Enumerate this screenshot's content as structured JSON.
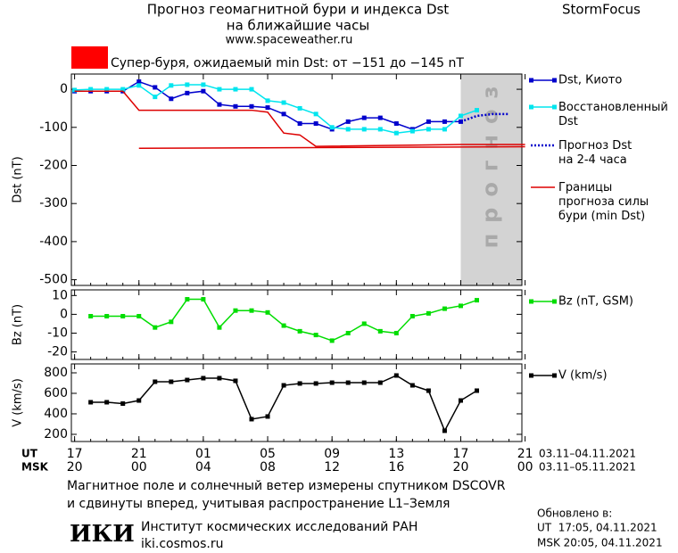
{
  "header": {
    "title": "Прогноз геомагнитной бури и индекса Dst",
    "subtitle": "на ближайшие часы",
    "site": "www.spaceweather.ru",
    "brand": "StormFocus",
    "storm_note": "Супер-буря, ожидаемый min Dst: от −151 до −145 nT",
    "storm_color": "#ff0000"
  },
  "chart_data": [
    {
      "type": "line",
      "ylabel": "Dst (nT)",
      "ylim": [
        -515,
        40
      ],
      "yticks": [
        0,
        -100,
        -200,
        -300,
        -400,
        -500
      ],
      "forecast_band": {
        "x": [
          24,
          28
        ],
        "label": "прогноз",
        "color": "#d3d3d3"
      },
      "series": [
        {
          "name": "Dst, Киото",
          "color": "#0000cc",
          "marker": "square",
          "x": [
            0,
            1,
            2,
            3,
            4,
            5,
            6,
            7,
            8,
            9,
            10,
            11,
            12,
            13,
            14,
            15,
            16,
            17,
            18,
            19,
            20,
            21,
            22,
            23,
            24
          ],
          "values": [
            -5,
            -5,
            -5,
            -5,
            20,
            5,
            -25,
            -10,
            -5,
            -40,
            -45,
            -45,
            -48,
            -65,
            -90,
            -90,
            -105,
            -85,
            -75,
            -75,
            -90,
            -105,
            -85,
            -85,
            -85
          ]
        },
        {
          "name": "Восстановленный\nDst",
          "color": "#00e5ee",
          "marker": "square",
          "x": [
            0,
            1,
            2,
            3,
            4,
            5,
            6,
            7,
            8,
            9,
            10,
            11,
            12,
            13,
            14,
            15,
            16,
            17,
            18,
            19,
            20,
            21,
            22,
            23,
            24,
            25
          ],
          "values": [
            -2,
            0,
            0,
            0,
            10,
            -20,
            10,
            12,
            12,
            0,
            0,
            0,
            -30,
            -35,
            -50,
            -65,
            -100,
            -105,
            -105,
            -105,
            -115,
            -110,
            -105,
            -105,
            -70,
            -55
          ]
        },
        {
          "name": "Прогноз Dst\nна 2-4 часа",
          "color": "#0000cc",
          "dash": "dotted",
          "x": [
            24,
            25,
            26,
            27
          ],
          "values": [
            -85,
            -70,
            -65,
            -65
          ]
        },
        {
          "name": "Границы\nпрогноза силы\nбури (min Dst)",
          "color": "#dd0000",
          "x": [
            0,
            3,
            4,
            11,
            12,
            13,
            14,
            15,
            24,
            28
          ],
          "values": [
            -5,
            -5,
            -55,
            -55,
            -60,
            -115,
            -120,
            -150,
            -145,
            -145
          ]
        },
        {
          "color": "#dd0000",
          "x": [
            4,
            28
          ],
          "values": [
            -155,
            -151
          ]
        }
      ]
    },
    {
      "type": "line",
      "ylabel": "Bz (nT)",
      "ylim": [
        -24,
        13
      ],
      "yticks": [
        10,
        0,
        -10,
        -20
      ],
      "series": [
        {
          "name": "Bz (nT, GSM)",
          "color": "#00dd00",
          "marker": "square",
          "x": [
            1,
            2,
            3,
            4,
            5,
            6,
            7,
            8,
            9,
            10,
            11,
            12,
            13,
            14,
            15,
            16,
            17,
            18,
            19,
            20,
            21,
            22,
            23,
            24,
            25
          ],
          "values": [
            -1,
            -1,
            -1,
            -1,
            -7,
            -4,
            8,
            8,
            -7,
            2,
            2,
            1,
            -6,
            -9,
            -11,
            -14,
            -10,
            -5,
            -9,
            -10,
            -1,
            0.5,
            3,
            4.5,
            7.5
          ]
        }
      ]
    },
    {
      "type": "line",
      "ylabel": "V (km/s)",
      "ylim": [
        130,
        887
      ],
      "yticks": [
        800,
        600,
        400,
        200
      ],
      "xlim": [
        -0.2,
        27.8
      ],
      "xticks": [
        {
          "value": 0,
          "label": "17",
          "msk": "20"
        },
        {
          "value": 4,
          "label": "21",
          "msk": "00"
        },
        {
          "value": 8,
          "label": "01",
          "msk": "04"
        },
        {
          "value": 12,
          "label": "05",
          "msk": "08"
        },
        {
          "value": 16,
          "label": "09",
          "msk": "12"
        },
        {
          "value": 20,
          "label": "13",
          "msk": "16"
        },
        {
          "value": 24,
          "label": "17",
          "msk": "20"
        },
        {
          "value": 28,
          "label": "21",
          "msk": "00"
        }
      ],
      "xlabel_ut": "UT",
      "xlabel_msk": "MSK",
      "range_ut": "03.11–04.11.2021",
      "range_msk": "03.11–05.11.2021",
      "series": [
        {
          "name": "V (km/s)",
          "color": "#000000",
          "marker": "square",
          "x": [
            1,
            2,
            3,
            4,
            5,
            6,
            7,
            8,
            9,
            10,
            11,
            12,
            13,
            14,
            15,
            16,
            17,
            18,
            19,
            20,
            21,
            22,
            23,
            24,
            25
          ],
          "values": [
            513,
            513,
            500,
            530,
            713,
            713,
            730,
            748,
            748,
            722,
            348,
            374,
            678,
            696,
            696,
            704,
            704,
            704,
            704,
            774,
            678,
            626,
            235,
            530,
            626
          ]
        }
      ]
    }
  ],
  "footer": {
    "note_1": "Магнитное поле и солнечный ветер измерены спутником DSCOVR",
    "note_2": "и сдвинуты вперед, учитывая распространение L1–Земля",
    "updated": "Обновлено в:",
    "updated_ut": "UT  17:05, 04.11.2021",
    "updated_msk": "MSK 20:05, 04.11.2021",
    "logo": "ИКИ",
    "institute": "Институт космических исследований РАН",
    "institute_site": "iki.cosmos.ru"
  }
}
